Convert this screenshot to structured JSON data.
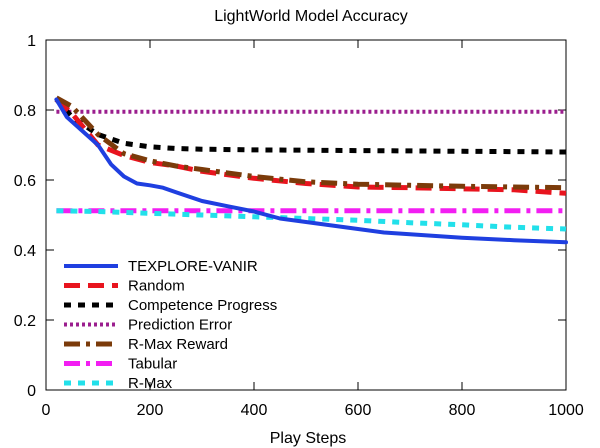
{
  "chart_data": {
    "type": "line",
    "title": "LightWorld Model Accuracy",
    "xlabel": "Play Steps",
    "ylabel": "",
    "xlim": [
      0,
      1000
    ],
    "ylim": [
      0,
      1
    ],
    "xticks": [
      0,
      200,
      400,
      600,
      800,
      1000
    ],
    "yticks": [
      0,
      0.2,
      0.4,
      0.6,
      0.8,
      1
    ],
    "xtick_labels": [
      "0",
      "200",
      "400",
      "600",
      "800",
      "1000"
    ],
    "ytick_labels": [
      "0",
      "0.2",
      "0.4",
      "0.6",
      "0.8",
      "1"
    ],
    "grid": false,
    "legend_position": "bottom-left",
    "series": [
      {
        "name": "TEXPLORE-VANIR",
        "color": "#1f3fe0",
        "dash": "solid",
        "x": [
          20,
          40,
          70,
          100,
          125,
          150,
          175,
          200,
          225,
          250,
          300,
          350,
          400,
          450,
          500,
          550,
          600,
          650,
          700,
          800,
          900,
          1000
        ],
        "y": [
          0.83,
          0.78,
          0.74,
          0.7,
          0.645,
          0.61,
          0.59,
          0.585,
          0.578,
          0.565,
          0.54,
          0.525,
          0.51,
          0.49,
          0.48,
          0.47,
          0.46,
          0.45,
          0.445,
          0.435,
          0.428,
          0.422
        ]
      },
      {
        "name": "Random",
        "color": "#e8141e",
        "dash": "dash",
        "x": [
          20,
          50,
          100,
          150,
          200,
          250,
          300,
          400,
          500,
          600,
          700,
          800,
          900,
          1000
        ],
        "y": [
          0.83,
          0.79,
          0.7,
          0.67,
          0.65,
          0.64,
          0.625,
          0.605,
          0.59,
          0.58,
          0.578,
          0.575,
          0.572,
          0.562
        ]
      },
      {
        "name": "Competence Progress",
        "color": "#000000",
        "dash": "dot",
        "x": [
          20,
          50,
          100,
          150,
          200,
          250,
          300,
          400,
          500,
          600,
          700,
          800,
          900,
          1000
        ],
        "y": [
          0.83,
          0.78,
          0.73,
          0.705,
          0.695,
          0.69,
          0.688,
          0.686,
          0.685,
          0.684,
          0.683,
          0.682,
          0.681,
          0.68
        ]
      },
      {
        "name": "Prediction Error",
        "color": "#9b1e8e",
        "dash": "fine",
        "x": [
          20,
          200,
          400,
          600,
          800,
          1000
        ],
        "y": [
          0.795,
          0.795,
          0.795,
          0.795,
          0.795,
          0.795
        ]
      },
      {
        "name": "R-Max Reward",
        "color": "#7b3b0a",
        "dash": "dashdot",
        "x": [
          20,
          50,
          100,
          150,
          200,
          250,
          300,
          400,
          500,
          600,
          700,
          800,
          900,
          1000
        ],
        "y": [
          0.835,
          0.81,
          0.73,
          0.675,
          0.655,
          0.64,
          0.63,
          0.61,
          0.595,
          0.588,
          0.585,
          0.582,
          0.58,
          0.578
        ]
      },
      {
        "name": "Tabular",
        "color": "#f21ef2",
        "dash": "dashdot",
        "x": [
          20,
          200,
          400,
          600,
          800,
          1000
        ],
        "y": [
          0.512,
          0.512,
          0.512,
          0.512,
          0.512,
          0.512
        ]
      },
      {
        "name": "R-Max",
        "color": "#22e0ea",
        "dash": "dot",
        "x": [
          20,
          100,
          200,
          300,
          400,
          500,
          600,
          700,
          800,
          900,
          1000
        ],
        "y": [
          0.512,
          0.51,
          0.505,
          0.5,
          0.495,
          0.49,
          0.485,
          0.478,
          0.472,
          0.465,
          0.46
        ]
      }
    ]
  }
}
